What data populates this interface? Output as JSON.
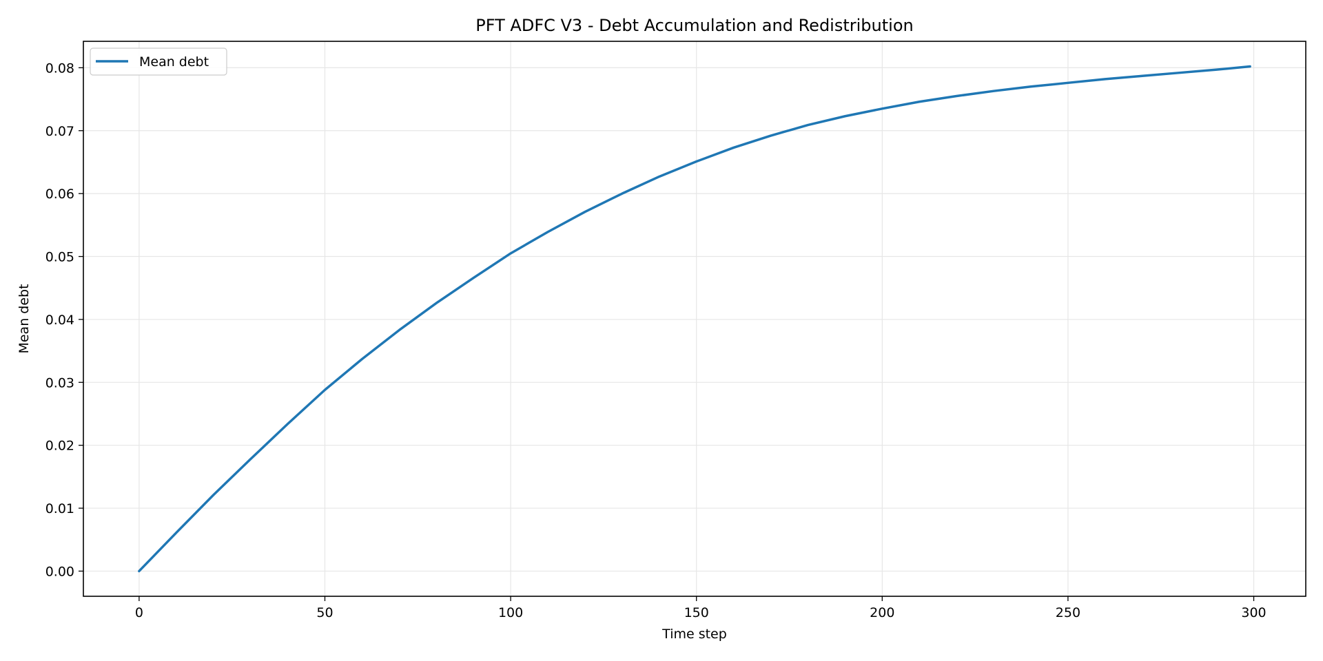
{
  "chart_data": {
    "type": "line",
    "title": "PFT ADFC V3 - Debt Accumulation and Redistribution",
    "xlabel": "Time step",
    "ylabel": "Mean debt",
    "xlim": [
      -15,
      314
    ],
    "ylim": [
      -0.004,
      0.0842
    ],
    "xticks": [
      0,
      50,
      100,
      150,
      200,
      250,
      300
    ],
    "yticks": [
      0.0,
      0.01,
      0.02,
      0.03,
      0.04,
      0.05,
      0.06,
      0.07,
      0.08
    ],
    "xtick_labels": [
      "0",
      "50",
      "100",
      "150",
      "200",
      "250",
      "300"
    ],
    "ytick_labels": [
      "0.00",
      "0.01",
      "0.02",
      "0.03",
      "0.04",
      "0.05",
      "0.06",
      "0.07",
      "0.08"
    ],
    "grid": true,
    "legend_position": "top-left",
    "series": [
      {
        "name": "Mean debt",
        "color": "#1f77b4",
        "x": [
          0,
          10,
          20,
          30,
          40,
          50,
          60,
          70,
          80,
          90,
          100,
          110,
          120,
          130,
          140,
          150,
          160,
          170,
          180,
          190,
          200,
          210,
          220,
          230,
          240,
          250,
          260,
          270,
          280,
          290,
          299
        ],
        "y": [
          0.0,
          0.0061,
          0.0121,
          0.0178,
          0.0234,
          0.0288,
          0.0337,
          0.0383,
          0.0426,
          0.0466,
          0.0505,
          0.0539,
          0.0571,
          0.06,
          0.0627,
          0.0651,
          0.0673,
          0.0692,
          0.0709,
          0.0723,
          0.0735,
          0.0746,
          0.0755,
          0.0763,
          0.077,
          0.0776,
          0.0782,
          0.0787,
          0.0792,
          0.0797,
          0.0802
        ]
      }
    ]
  }
}
